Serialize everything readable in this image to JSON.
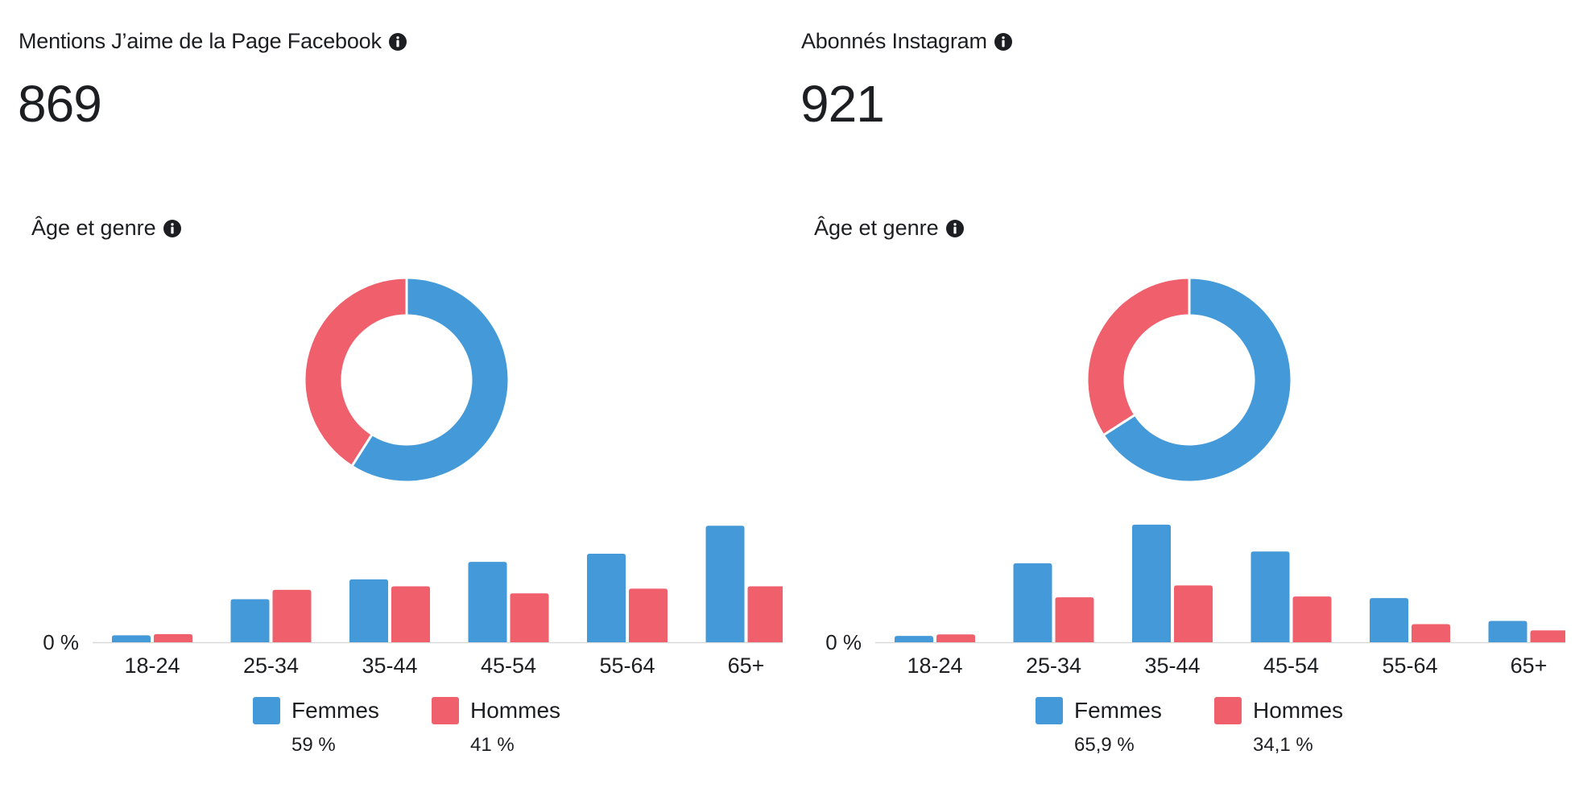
{
  "colors": {
    "women": "#4499d8",
    "men": "#f0606c",
    "axis": "#d9d9d9",
    "text": "#1c1e21"
  },
  "panels": [
    {
      "metric_title": "Mentions J’aime de la Page Facebook",
      "metric_value": "869",
      "section_title": "Âge et genre",
      "legend": [
        {
          "label": "Femmes",
          "pct": "59 %"
        },
        {
          "label": "Hommes",
          "pct": "41 %"
        }
      ]
    },
    {
      "metric_title": "Abonnés Instagram",
      "metric_value": "921",
      "section_title": "Âge et genre",
      "legend": [
        {
          "label": "Femmes",
          "pct": "65,9 %"
        },
        {
          "label": "Hommes",
          "pct": "34,1 %"
        }
      ]
    }
  ],
  "chart_data": [
    {
      "type": "pie",
      "title": "Âge et genre",
      "labels": [
        "Femmes",
        "Hommes"
      ],
      "values": [
        59,
        41
      ]
    },
    {
      "type": "bar",
      "title": "Âge et genre",
      "categories": [
        "18-24",
        "25-34",
        "35-44",
        "45-54",
        "55-64",
        "65+"
      ],
      "series": [
        {
          "name": "Femmes",
          "values": [
            0.6,
            3.7,
            5.4,
            6.9,
            7.6,
            10.0
          ]
        },
        {
          "name": "Hommes",
          "values": [
            0.7,
            4.5,
            4.8,
            4.2,
            4.6,
            4.8
          ]
        }
      ],
      "y_tick_labels": [
        "0 %"
      ],
      "ylim": [
        0,
        10.5
      ]
    },
    {
      "type": "pie",
      "title": "Âge et genre",
      "labels": [
        "Femmes",
        "Hommes"
      ],
      "values": [
        65.9,
        34.1
      ]
    },
    {
      "type": "bar",
      "title": "Âge et genre",
      "categories": [
        "18-24",
        "25-34",
        "35-44",
        "45-54",
        "55-64",
        "65+"
      ],
      "series": [
        {
          "name": "Femmes",
          "values": [
            0.8,
            10.0,
            14.9,
            11.5,
            5.6,
            2.7
          ]
        },
        {
          "name": "Hommes",
          "values": [
            1.0,
            5.7,
            7.2,
            5.8,
            2.3,
            1.5
          ]
        }
      ],
      "y_tick_labels": [
        "0 %"
      ],
      "ylim": [
        0,
        15.5
      ]
    }
  ]
}
